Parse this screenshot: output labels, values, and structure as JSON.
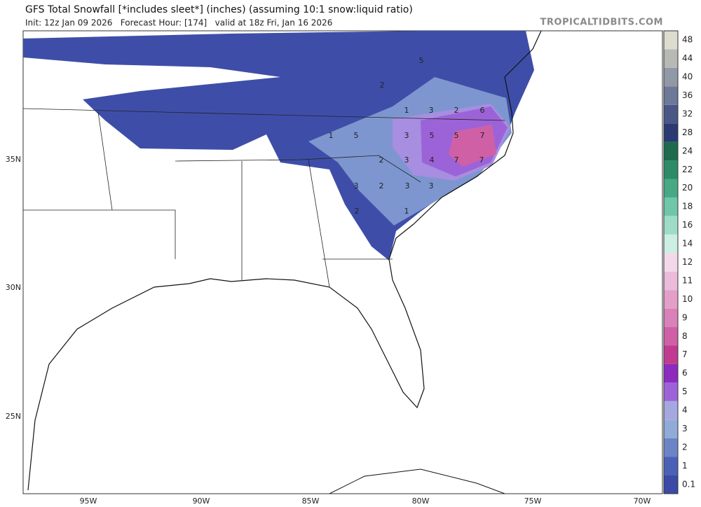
{
  "header": {
    "title": "GFS Total Snowfall [*includes sleet*] (inches) (assuming 10:1 snow:liquid ratio)",
    "subtitle": "Init: 12z Jan 09 2026   Forecast Hour: [174]   valid at 18z Fri, Jan 16 2026",
    "site": "TROPICALTIDBITS.COM"
  },
  "map": {
    "lon_labels": [
      "95W",
      "90W",
      "85W",
      "80W",
      "75W",
      "70W"
    ],
    "lat_labels": [
      "35N",
      "30N",
      "25N"
    ],
    "map_labels": [
      "5",
      "2",
      "1",
      "3",
      "2",
      "6",
      "1",
      "5",
      "3",
      "5",
      "5",
      "7",
      "2",
      "3",
      "4",
      "7",
      "7",
      "3",
      "2",
      "3",
      "3",
      "2",
      "1"
    ]
  },
  "colorbar": {
    "levels": [
      {
        "label": "0.1",
        "color": "#3a4aa6"
      },
      {
        "label": "1",
        "color": "#4b61b6"
      },
      {
        "label": "2",
        "color": "#6c84c6"
      },
      {
        "label": "3",
        "color": "#91abd8"
      },
      {
        "label": "4",
        "color": "#a5a8e0"
      },
      {
        "label": "5",
        "color": "#9c63d8"
      },
      {
        "label": "6",
        "color": "#8b2cbf"
      },
      {
        "label": "7",
        "color": "#c03a92"
      },
      {
        "label": "8",
        "color": "#cf60a6"
      },
      {
        "label": "9",
        "color": "#d981b8"
      },
      {
        "label": "10",
        "color": "#e49fc9"
      },
      {
        "label": "11",
        "color": "#ebbbd9"
      },
      {
        "label": "12",
        "color": "#f3d8ea"
      },
      {
        "label": "14",
        "color": "#cdeee3"
      },
      {
        "label": "16",
        "color": "#9fdcc7"
      },
      {
        "label": "18",
        "color": "#6fc6a8"
      },
      {
        "label": "20",
        "color": "#47a886"
      },
      {
        "label": "22",
        "color": "#2d8b68"
      },
      {
        "label": "24",
        "color": "#1e6b4e"
      },
      {
        "label": "28",
        "color": "#2b3a72"
      },
      {
        "label": "32",
        "color": "#4a5685"
      },
      {
        "label": "36",
        "color": "#6e7899"
      },
      {
        "label": "40",
        "color": "#9198a6"
      },
      {
        "label": "44",
        "color": "#b6b9b4"
      },
      {
        "label": "48",
        "color": "#dcdccf"
      }
    ]
  }
}
